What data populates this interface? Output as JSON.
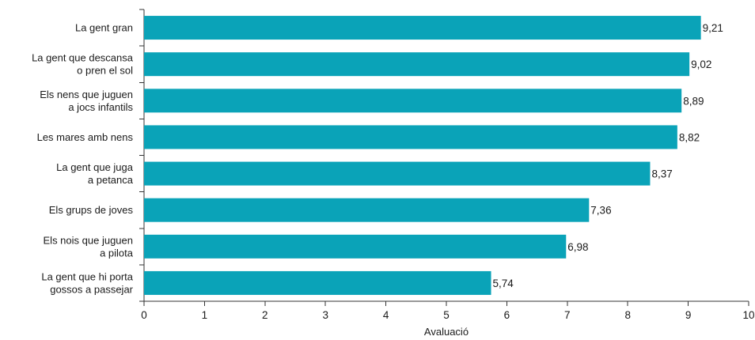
{
  "chart_data": {
    "type": "bar",
    "orientation": "horizontal",
    "categories": [
      [
        "La gent gran"
      ],
      [
        "La gent que descansa",
        "o pren el sol"
      ],
      [
        "Els nens que juguen",
        "a jocs infantils"
      ],
      [
        "Les mares amb nens"
      ],
      [
        "La gent que juga",
        "a petanca"
      ],
      [
        "Els grups de joves"
      ],
      [
        "Els nois que juguen",
        "a pilota"
      ],
      [
        "La gent que hi porta",
        "gossos a passejar"
      ]
    ],
    "values": [
      9.21,
      9.02,
      8.89,
      8.82,
      8.37,
      7.36,
      6.98,
      5.74
    ],
    "value_labels": [
      "9,21",
      "9,02",
      "8,89",
      "8,82",
      "8,37",
      "7,36",
      "6,98",
      "5,74"
    ],
    "xlabel": "Avaluació",
    "xlim": [
      0,
      10
    ],
    "xticks": [
      "0",
      "1",
      "2",
      "3",
      "4",
      "5",
      "6",
      "7",
      "8",
      "9",
      "10"
    ],
    "bar_color": "#0aa3b8",
    "grid": false,
    "legend": "none"
  }
}
